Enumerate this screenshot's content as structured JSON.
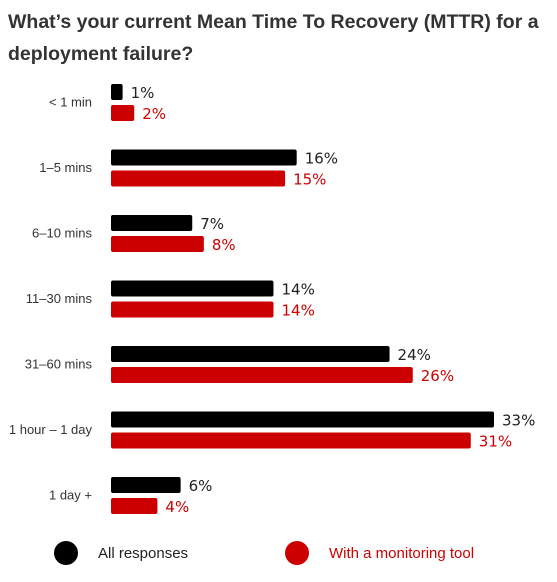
{
  "chart_data": {
    "type": "bar",
    "orientation": "horizontal",
    "title": "What’s your current Mean Time To Recovery (MTTR) for a deployment failure?",
    "categories": [
      "< 1 min",
      "1–5 mins",
      "6–10 mins",
      "11–30 mins",
      "31–60 mins",
      "1 hour – 1 day",
      "1 day +"
    ],
    "series": [
      {
        "name": "All responses",
        "values": [
          1,
          16,
          7,
          14,
          24,
          33,
          6
        ],
        "labels": [
          "1%",
          "16%",
          "7%",
          "14%",
          "24%",
          "33%",
          "6%"
        ],
        "color": "#000000"
      },
      {
        "name": "With a monitoring tool",
        "values": [
          2,
          15,
          8,
          14,
          26,
          31,
          4
        ],
        "labels": [
          "2%",
          "15%",
          "8%",
          "14%",
          "26%",
          "31%",
          "4%"
        ],
        "color": "#cc0000"
      }
    ],
    "xlim": [
      0,
      33
    ],
    "grid": false,
    "legend": "bottom"
  }
}
